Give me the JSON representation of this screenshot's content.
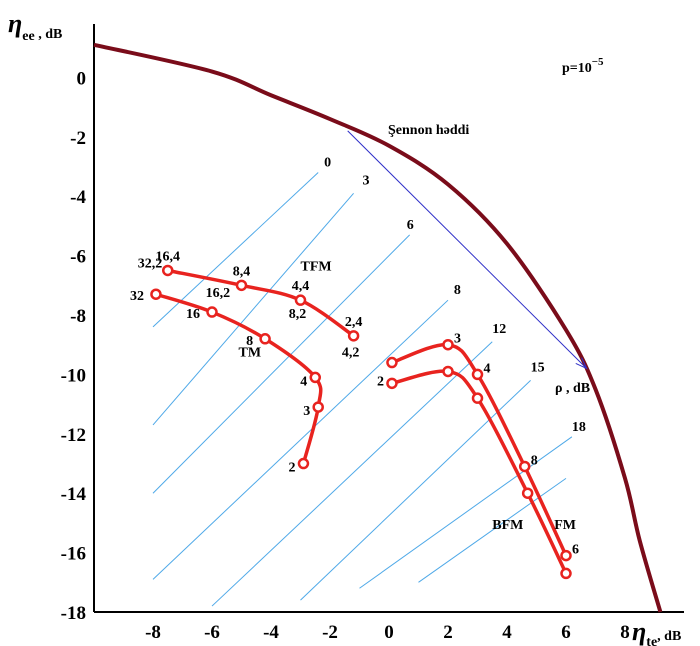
{
  "chart_data": {
    "type": "line",
    "title": "",
    "xlabel": "η",
    "xlabel_sub": "te",
    "xlabel_unit": ", dB",
    "ylabel": "η",
    "ylabel_sub": "ee",
    "ylabel_unit": " , dB",
    "xlim": [
      -10,
      10
    ],
    "ylim": [
      -18,
      1.8
    ],
    "x_ticks": [
      -8,
      -6,
      -4,
      -2,
      0,
      2,
      4,
      6,
      8
    ],
    "y_ticks": [
      0,
      -2,
      -4,
      -6,
      -8,
      -10,
      -12,
      -14,
      -16,
      -18
    ],
    "x_tick_labels": [
      "-8",
      "-6",
      "-4",
      "-2",
      "0",
      "2",
      "4",
      "6",
      "8"
    ],
    "y_tick_labels": [
      "0",
      "-2",
      "-4",
      "-6",
      "-8",
      "-10",
      "-12",
      "-14",
      "-16",
      "-18"
    ],
    "grid": false,
    "annotation_prob": "p=10",
    "annotation_prob_exp": "−5",
    "shannon": {
      "label": "Şennon həddi",
      "color": "#7a0c1a",
      "x": [
        -10,
        -6,
        -4,
        -2,
        0,
        2,
        4,
        6,
        7,
        8,
        8.5,
        9.2
      ],
      "y": [
        1.1,
        0.2,
        -0.6,
        -1.4,
        -2.3,
        -3.6,
        -5.6,
        -8.5,
        -10.5,
        -13.5,
        -15.6,
        -18
      ]
    },
    "rho_arrow": {
      "label": "ρ , dB",
      "from": [
        -1.4,
        -1.8
      ],
      "to": [
        6.7,
        -9.8
      ]
    },
    "rho_lines": {
      "color": "#4fa9e8",
      "labels": [
        {
          "text": "0",
          "x": -2.2,
          "y": -3.0
        },
        {
          "text": "3",
          "x": -0.9,
          "y": -3.6
        },
        {
          "text": "6",
          "x": 0.6,
          "y": -5.1
        },
        {
          "text": "8",
          "x": 2.2,
          "y": -7.3
        },
        {
          "text": "12",
          "x": 3.5,
          "y": -8.6
        },
        {
          "text": "15",
          "x": 4.8,
          "y": -9.9
        },
        {
          "text": "18",
          "x": 6.2,
          "y": -11.9
        }
      ],
      "segments": [
        {
          "x": [
            -8.0,
            -2.4
          ],
          "y": [
            -8.4,
            -3.2
          ]
        },
        {
          "x": [
            -8.0,
            -1.2
          ],
          "y": [
            -11.7,
            -3.9
          ]
        },
        {
          "x": [
            -8.0,
            0.7
          ],
          "y": [
            -14.0,
            -5.3
          ]
        },
        {
          "x": [
            -8.0,
            2.0
          ],
          "y": [
            -16.9,
            -7.5
          ]
        },
        {
          "x": [
            -6.0,
            3.5
          ],
          "y": [
            -17.8,
            -8.9
          ]
        },
        {
          "x": [
            -3.0,
            4.8
          ],
          "y": [
            -17.6,
            -10.2
          ]
        },
        {
          "x": [
            -1.0,
            6.2
          ],
          "y": [
            -17.2,
            -12.1
          ]
        },
        {
          "x": [
            1.0,
            6.0
          ],
          "y": [
            -17.0,
            -13.5
          ]
        }
      ]
    },
    "series": [
      {
        "name": "TFM",
        "color": "#e8231f",
        "x": [
          -7.5,
          -5.0,
          -3.0,
          -1.2
        ],
        "y": [
          -6.5,
          -7.0,
          -7.5,
          -8.7
        ],
        "point_labels": [
          "16,4",
          "8,4",
          "4,4",
          "2,4"
        ]
      },
      {
        "name": "TM",
        "color": "#e8231f",
        "x": [
          -7.9,
          -6.0,
          -4.2,
          -2.5,
          -2.4,
          -2.9
        ],
        "y": [
          -7.3,
          -7.9,
          -8.8,
          -10.1,
          -11.1,
          -13.0
        ],
        "point_labels": [
          "32",
          "16",
          "8",
          "4",
          "3",
          "2"
        ]
      },
      {
        "name": "FM",
        "color": "#e8231f",
        "x": [
          0.1,
          2.0,
          3.0,
          4.6,
          6.0
        ],
        "y": [
          -9.6,
          -9.0,
          -10.0,
          -13.1,
          -16.1
        ],
        "point_labels": [
          "",
          "3",
          "4",
          "8",
          "6"
        ]
      },
      {
        "name": "BFM",
        "color": "#e8231f",
        "x": [
          0.1,
          2.0,
          3.0,
          4.7,
          6.0
        ],
        "y": [
          -10.3,
          -9.9,
          -10.8,
          -14.0,
          -16.7
        ],
        "point_labels": [
          "2",
          "",
          "",
          "",
          ""
        ]
      }
    ],
    "extra_labels": [
      {
        "text": "32,2",
        "x": -8.1,
        "y": -6.4
      },
      {
        "text": "16,2",
        "x": -5.8,
        "y": -7.4
      },
      {
        "text": "8,2",
        "x": -3.1,
        "y": -8.1
      },
      {
        "text": "4,2",
        "x": -1.3,
        "y": -9.4
      }
    ],
    "series_name_labels": [
      {
        "text": "TFM",
        "x": -3.0,
        "y": -6.5
      },
      {
        "text": "TM",
        "x": -5.1,
        "y": -9.4
      },
      {
        "text": "BFM",
        "x": 3.5,
        "y": -15.2
      },
      {
        "text": "FM",
        "x": 5.6,
        "y": -15.2
      }
    ]
  }
}
